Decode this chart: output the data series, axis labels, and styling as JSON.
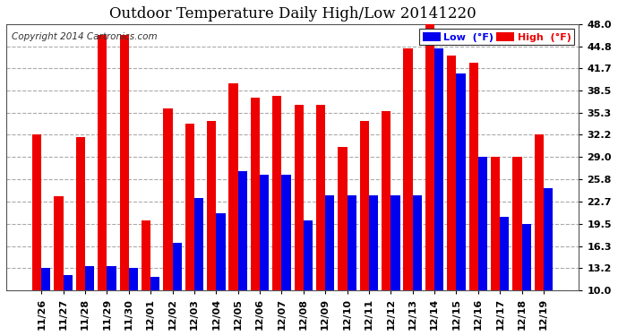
{
  "title": "Outdoor Temperature Daily High/Low 20141220",
  "copyright": "Copyright 2014 Cartronics.com",
  "legend_low": "Low  (°F)",
  "legend_high": "High  (°F)",
  "categories": [
    "11/26",
    "11/27",
    "11/28",
    "11/29",
    "11/30",
    "12/01",
    "12/02",
    "12/03",
    "12/04",
    "12/05",
    "12/06",
    "12/07",
    "12/08",
    "12/09",
    "12/10",
    "12/11",
    "12/12",
    "12/13",
    "12/14",
    "12/15",
    "12/16",
    "12/17",
    "12/18",
    "12/19"
  ],
  "low_values": [
    13.2,
    12.1,
    13.4,
    13.4,
    13.2,
    11.9,
    16.8,
    23.2,
    21.0,
    27.0,
    26.5,
    26.5,
    20.0,
    23.5,
    23.5,
    23.5,
    23.5,
    23.5,
    44.5,
    41.0,
    29.0,
    20.5,
    19.5,
    24.5
  ],
  "high_values": [
    32.2,
    23.4,
    31.8,
    46.5,
    46.5,
    20.0,
    36.0,
    33.8,
    34.2,
    39.5,
    37.5,
    37.8,
    36.5,
    36.5,
    30.5,
    34.2,
    35.6,
    44.5,
    48.2,
    43.5,
    42.5,
    29.0,
    29.0,
    32.2
  ],
  "low_color": "#0000ee",
  "high_color": "#ee0000",
  "bg_color": "#ffffff",
  "plot_bg_color": "#ffffff",
  "grid_color": "#aaaaaa",
  "ylim_min": 10.0,
  "ylim_max": 48.0,
  "ytick_vals": [
    10.0,
    13.2,
    16.3,
    19.5,
    22.7,
    25.8,
    29.0,
    32.2,
    35.3,
    38.5,
    41.7,
    44.8,
    48.0
  ],
  "title_fontsize": 12,
  "copyright_fontsize": 7.5,
  "bar_width": 0.42,
  "figwidth": 6.9,
  "figheight": 3.75,
  "dpi": 100
}
